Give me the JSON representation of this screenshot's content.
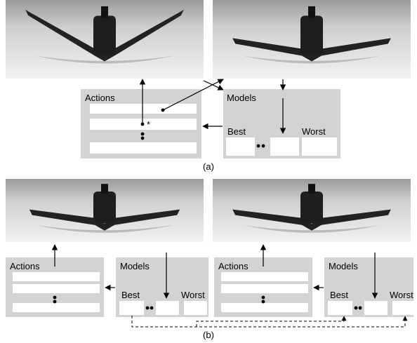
{
  "panel_a": {
    "caption": "(a)",
    "actions": {
      "title": "Actions",
      "marker": "*"
    },
    "models": {
      "title": "Models",
      "best": "Best",
      "worst": "Worst"
    }
  },
  "panel_b": {
    "caption": "(b)",
    "groups": [
      {
        "actions": {
          "title": "Actions"
        },
        "models": {
          "title": "Models",
          "best": "Best",
          "worst": "Worst"
        }
      },
      {
        "actions": {
          "title": "Actions"
        },
        "models": {
          "title": "Models",
          "best": "Best",
          "worst": "Worst"
        }
      }
    ]
  }
}
